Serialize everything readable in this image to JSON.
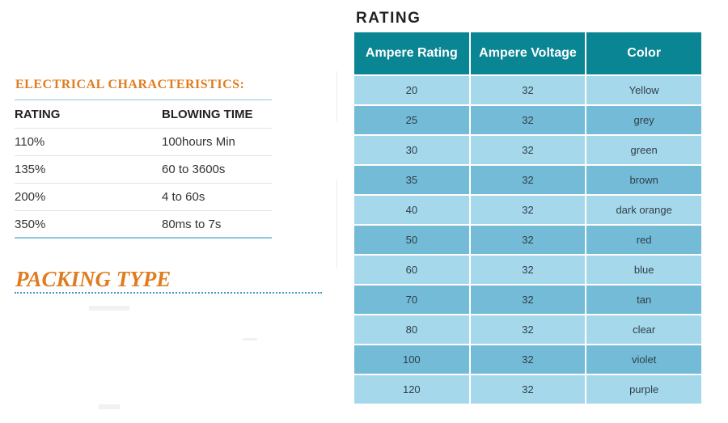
{
  "electrical": {
    "title": "ELECTRICAL CHARACTERISTICS:",
    "headers": [
      "RATING",
      "BLOWING TIME"
    ],
    "rows": [
      [
        "110%",
        "100hours Min"
      ],
      [
        "135%",
        "60 to 3600s"
      ],
      [
        "200%",
        "4 to 60s"
      ],
      [
        "350%",
        "80ms to 7s"
      ]
    ]
  },
  "packing": {
    "title": "PACKING TYPE"
  },
  "rating": {
    "title": "RATING",
    "headers": [
      "Ampere Rating",
      "Ampere Voltage",
      "Color"
    ],
    "rows": [
      [
        "20",
        "32",
        "Yellow"
      ],
      [
        "25",
        "32",
        "grey"
      ],
      [
        "30",
        "32",
        "green"
      ],
      [
        "35",
        "32",
        "brown"
      ],
      [
        "40",
        "32",
        "dark orange"
      ],
      [
        "50",
        "32",
        "red"
      ],
      [
        "60",
        "32",
        "blue"
      ],
      [
        "70",
        "32",
        "tan"
      ],
      [
        "80",
        "32",
        "clear"
      ],
      [
        "100",
        "32",
        "violet"
      ],
      [
        "120",
        "32",
        "purple"
      ]
    ]
  },
  "colors": {
    "accent_orange": "#e07c1f",
    "header_teal": "#0a8594",
    "row_light": "#a6d8ec",
    "row_dark": "#73bbd7",
    "rule_blue": "#8fc9df"
  }
}
